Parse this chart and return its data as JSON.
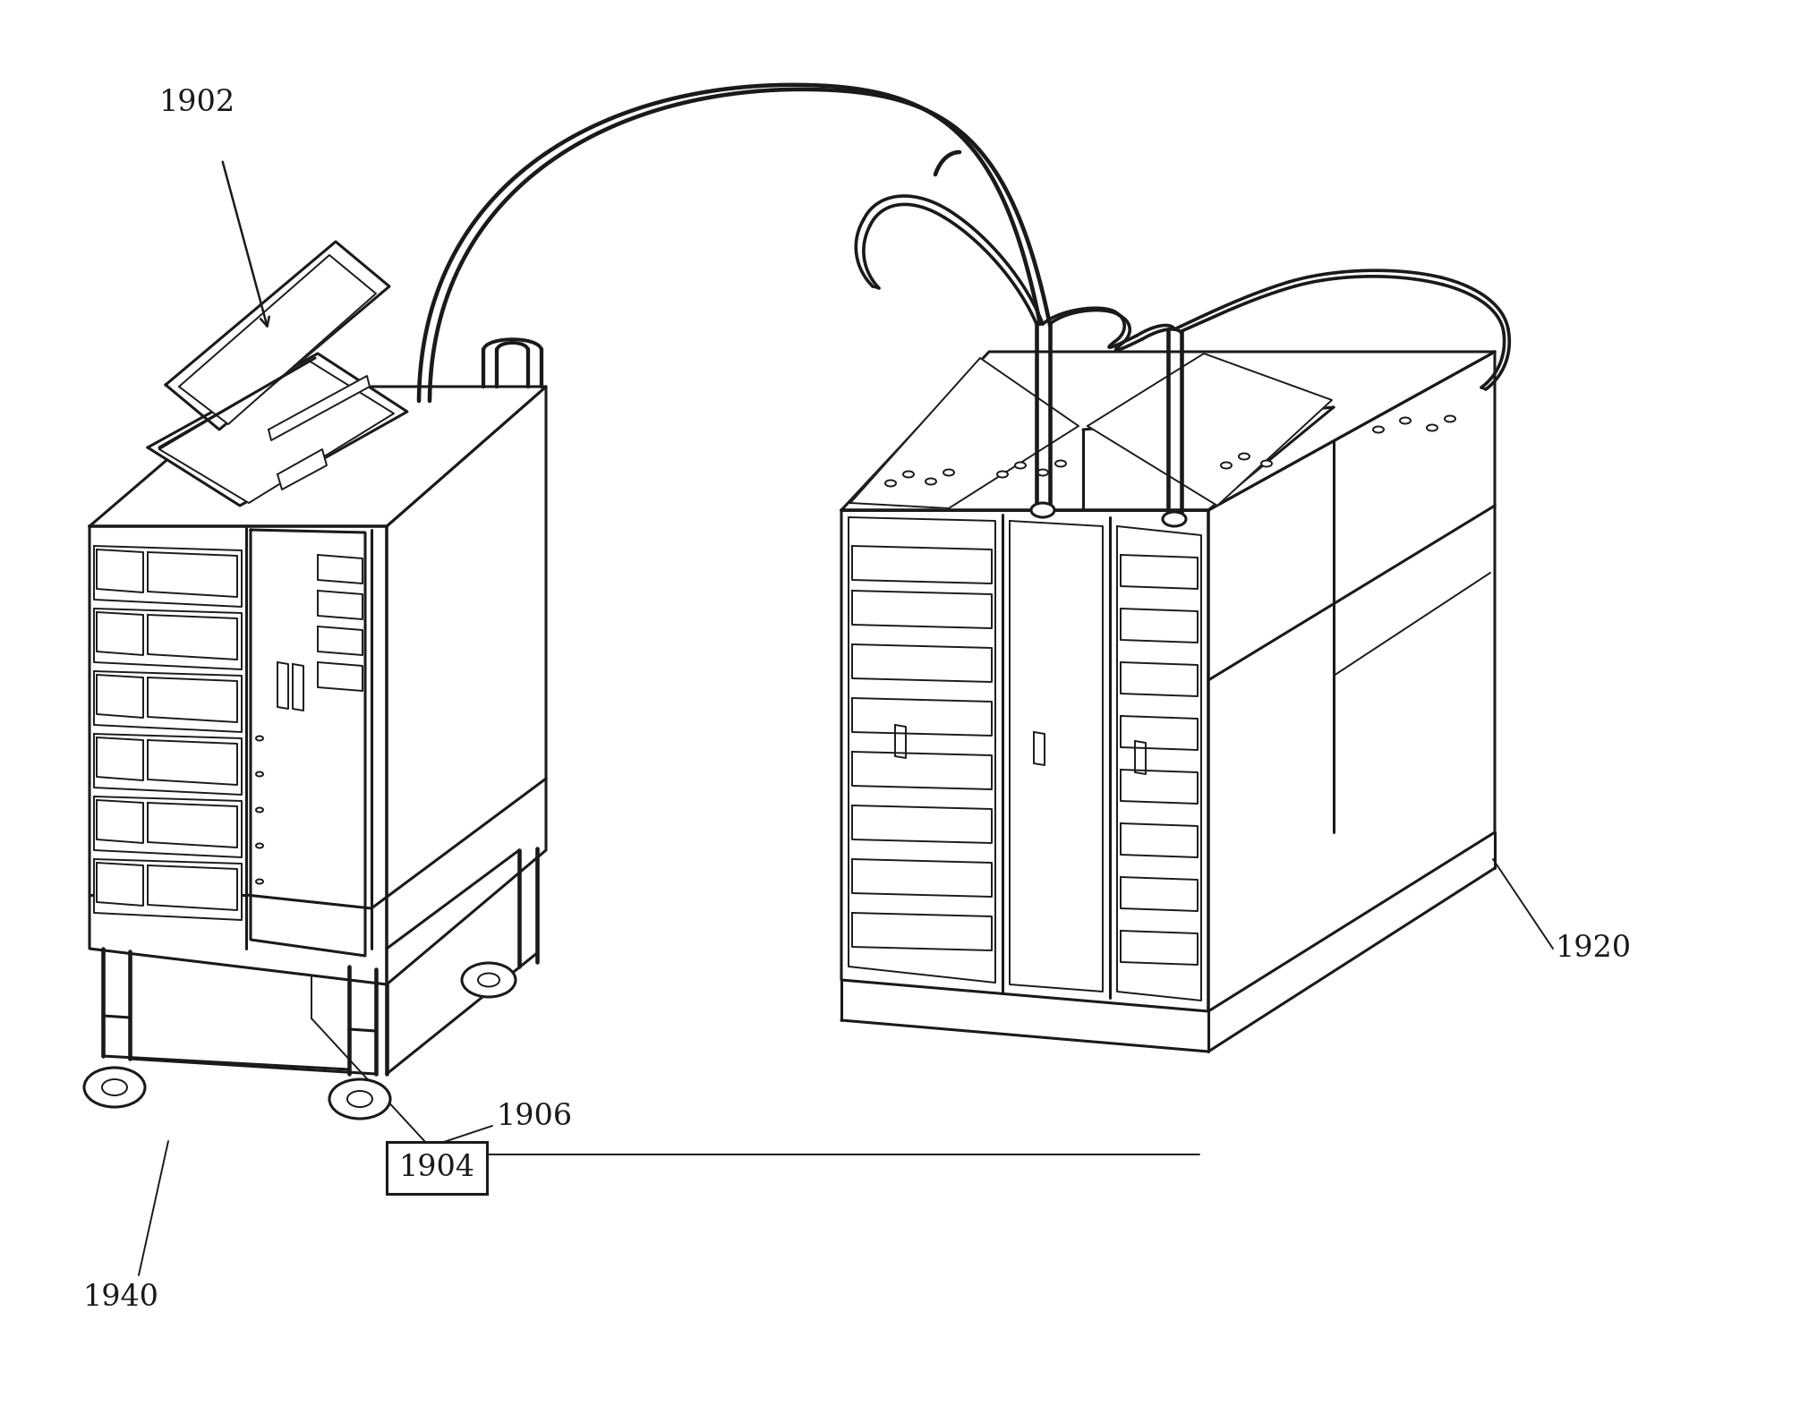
{
  "background_color": "#ffffff",
  "lc": "#1a1a1a",
  "lw": 2.2,
  "tlw": 1.4,
  "label_1902": "1902",
  "label_1904": "1904",
  "label_1906": "1906",
  "label_1920": "1920",
  "label_1940": "1940",
  "font_size": 24,
  "figsize": [
    20.11,
    15.8
  ],
  "dpi": 100
}
